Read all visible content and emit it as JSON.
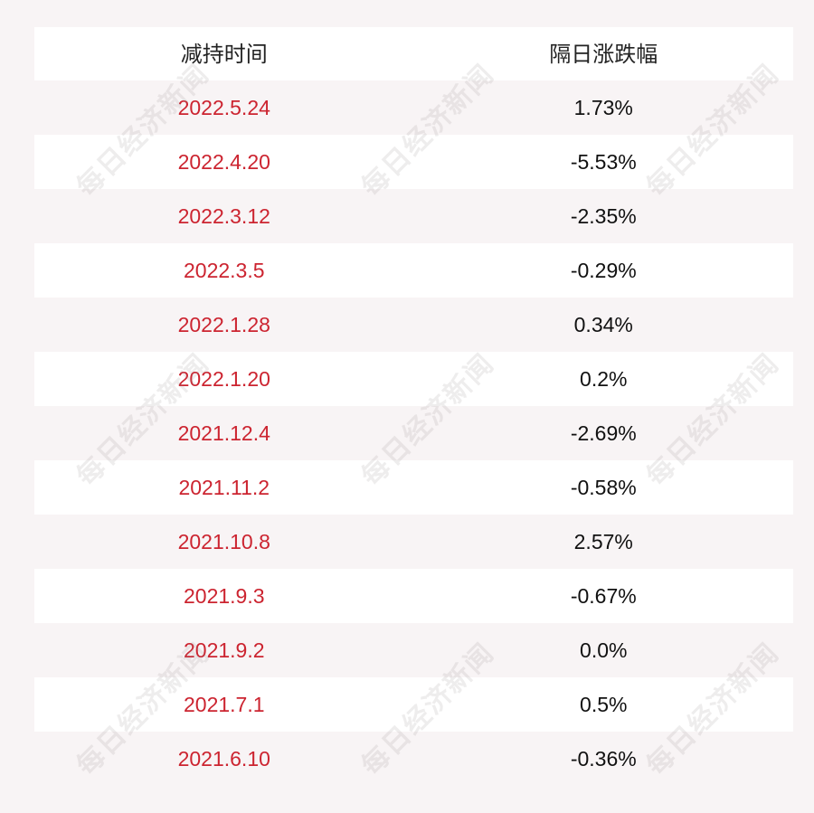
{
  "table": {
    "headers": [
      "减持时间",
      "隔日涨跌幅"
    ],
    "rows": [
      {
        "date": "2022.5.24",
        "change": "1.73%"
      },
      {
        "date": "2022.4.20",
        "change": "-5.53%"
      },
      {
        "date": "2022.3.12",
        "change": "-2.35%"
      },
      {
        "date": "2022.3.5",
        "change": "-0.29%"
      },
      {
        "date": "2022.1.28",
        "change": "0.34%"
      },
      {
        "date": "2022.1.20",
        "change": "0.2%"
      },
      {
        "date": "2021.12.4",
        "change": "-2.69%"
      },
      {
        "date": "2021.11.2",
        "change": "-0.58%"
      },
      {
        "date": "2021.10.8",
        "change": "2.57%"
      },
      {
        "date": "2021.9.3",
        "change": "-0.67%"
      },
      {
        "date": "2021.9.2",
        "change": "0.0%"
      },
      {
        "date": "2021.7.1",
        "change": "0.5%"
      },
      {
        "date": "2021.6.10",
        "change": "-0.36%"
      }
    ]
  },
  "watermark": {
    "text": "每日经济新闻"
  },
  "colors": {
    "date_text": "#cc2430",
    "change_text": "#111111",
    "background": "#f8f4f5",
    "stripe": "#ffffff"
  }
}
